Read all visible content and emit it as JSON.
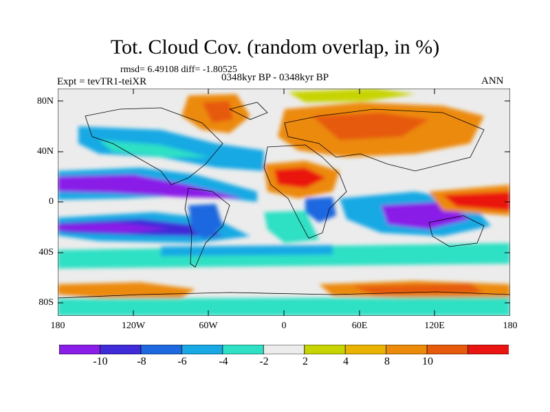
{
  "title": "Tot. Cloud Cov. (random overlap, in %)",
  "stats_line": "rmsd= 6.49108 diff= -1.80525",
  "experiment": "Expt = tevTR1-teiXR",
  "period": "0348kyr BP - 0348kyr BP",
  "season": "ANN",
  "map": {
    "projection": "cylindrical-equidistant",
    "lon_range": [
      -180,
      180
    ],
    "lat_range": [
      -90,
      90
    ],
    "lat_ticks": [
      "80N",
      "40N",
      "0",
      "40S",
      "80S"
    ],
    "lon_ticks": [
      "180",
      "120W",
      "60W",
      "0",
      "60E",
      "120E",
      "180"
    ]
  },
  "colorbar": {
    "tick_labels": [
      "-10",
      "-8",
      "-6",
      "-4",
      "-2",
      "2",
      "4",
      "8",
      "10"
    ],
    "colors": [
      "#8a1ee8",
      "#3f2bd8",
      "#1e68e0",
      "#18a9e4",
      "#2fe0c4",
      "#ececec",
      "#c8d400",
      "#e9b300",
      "#ec8a0a",
      "#e65a0c",
      "#ea1410"
    ]
  }
}
